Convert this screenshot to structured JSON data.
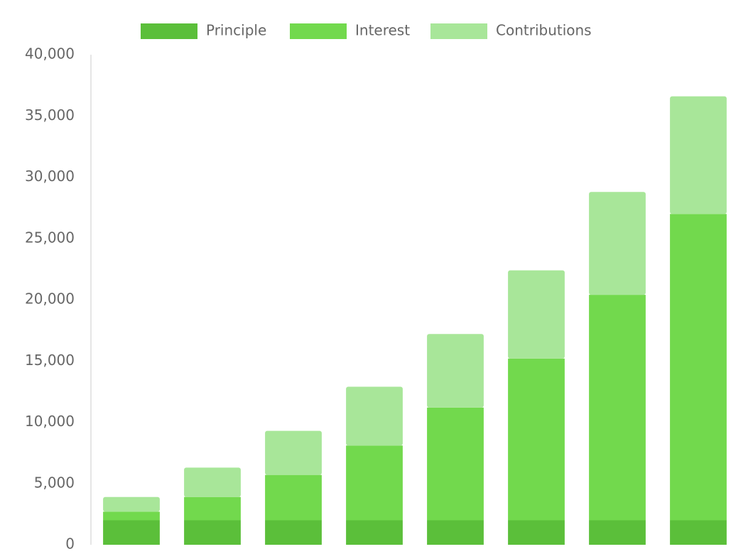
{
  "chart_data": {
    "type": "stacked_bar",
    "categories": [
      null,
      null,
      null,
      null,
      null,
      null,
      null,
      null
    ],
    "series": [
      {
        "name": "Principle",
        "color": "#5bbf3a",
        "values": [
          2000,
          2000,
          2000,
          2000,
          2000,
          2000,
          2000,
          2000
        ]
      },
      {
        "name": "Interest",
        "color": "#72d94d",
        "values": [
          700,
          1900,
          3700,
          6100,
          9200,
          13200,
          18400,
          25000
        ]
      },
      {
        "name": "Contributions",
        "color": "#a8e699",
        "values": [
          1200,
          2400,
          3600,
          4800,
          6000,
          7200,
          8400,
          9600
        ]
      }
    ],
    "ylim": [
      0,
      40000
    ],
    "yticks": [
      0,
      {
        "value": 5000,
        "label": "5,000"
      },
      {
        "value": 10000,
        "label": "10,000"
      },
      {
        "value": 15000,
        "label": "15,000"
      },
      {
        "value": 20000,
        "label": "20,000"
      },
      {
        "value": 25000,
        "label": "25,000"
      },
      {
        "value": 30000,
        "label": "30,000"
      },
      {
        "value": 35000,
        "label": "35,000"
      },
      {
        "value": 40000,
        "label": "40,000"
      }
    ],
    "grid": false,
    "legend": "top"
  }
}
